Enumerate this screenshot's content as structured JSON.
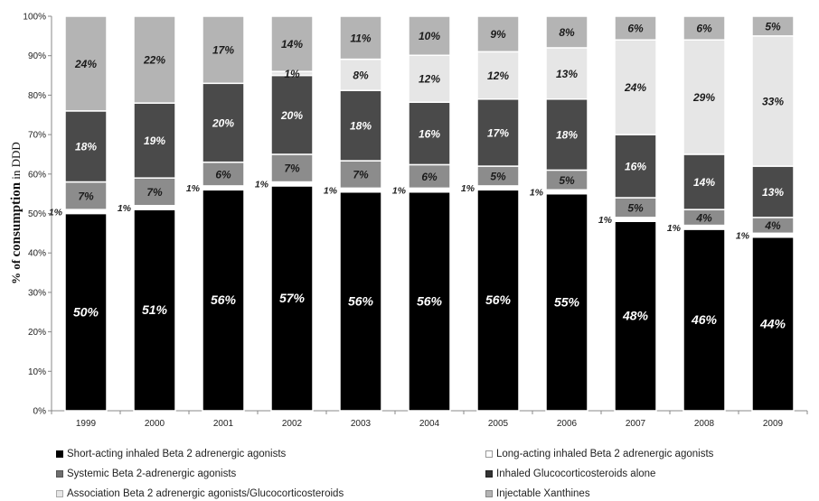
{
  "chart_data": {
    "type": "bar",
    "stacked": true,
    "percent_stacked": true,
    "ylabel": "% of consumption in DDD",
    "ylabel_parts": [
      "% of ",
      "consumption",
      " in DDD"
    ],
    "ylim": [
      0,
      100
    ],
    "yticks": [
      "0%",
      "10%",
      "20%",
      "30%",
      "40%",
      "50%",
      "60%",
      "70%",
      "80%",
      "90%",
      "100%"
    ],
    "categories": [
      "1999",
      "2000",
      "2001",
      "2002",
      "2003",
      "2004",
      "2005",
      "2006",
      "2007",
      "2008",
      "2009"
    ],
    "series": [
      {
        "name": "Short-acting inhaled  Beta 2 adrenergic agonists",
        "color": "#000000",
        "values": [
          50,
          51,
          56,
          57,
          56,
          56,
          56,
          55,
          48,
          46,
          44
        ],
        "labels": [
          "50%",
          "51%",
          "56%",
          "57%",
          "56%",
          "56%",
          "56%",
          "55%",
          "48%",
          "46%",
          "44%"
        ]
      },
      {
        "name": "Long-acting inhaled Beta 2 adrenergic agonists",
        "color": "#ffffff",
        "values": [
          1,
          1,
          1,
          1,
          1,
          1,
          1,
          1,
          1,
          1,
          1
        ],
        "labels": [
          "1%",
          "1%",
          "1%",
          "1%",
          "1%",
          "1%",
          "1%",
          "1%",
          "1%",
          "1%",
          "1%"
        ]
      },
      {
        "name": "Systemic Beta 2-adrenergic agonists",
        "color": "#8c8c8c",
        "values": [
          7,
          7,
          6,
          7,
          7,
          6,
          5,
          5,
          5,
          4,
          4
        ],
        "labels": [
          "7%",
          "7%",
          "6%",
          "7%",
          "7%",
          "6%",
          "5%",
          "5%",
          "5%",
          "4%",
          "4%"
        ]
      },
      {
        "name": "Inhaled Glucocorticosteroids alone",
        "color": "#4a4a4a",
        "values": [
          18,
          19,
          20,
          20,
          18,
          16,
          17,
          18,
          16,
          14,
          13
        ],
        "labels": [
          "18%",
          "19%",
          "20%",
          "20%",
          "18%",
          "16%",
          "17%",
          "18%",
          "16%",
          "14%",
          "13%"
        ]
      },
      {
        "name": "Association Beta 2 adrenergic agonists/Glucocorticosteroids",
        "color": "#e6e6e6",
        "values": [
          0,
          0,
          0,
          1,
          8,
          12,
          12,
          13,
          24,
          29,
          33
        ],
        "labels": [
          "",
          "",
          "",
          "1%",
          "8%",
          "12%",
          "12%",
          "13%",
          "24%",
          "29%",
          "33%"
        ]
      },
      {
        "name": "Injectable Xanthines",
        "color": "#b4b4b4",
        "values": [
          24,
          22,
          17,
          14,
          11,
          10,
          9,
          8,
          6,
          6,
          5
        ],
        "labels": [
          "24%",
          "22%",
          "17%",
          "14%",
          "11%",
          "10%",
          "9%",
          "8%",
          "6%",
          "6%",
          "5%"
        ]
      }
    ],
    "legend_position": "bottom",
    "grid": false
  }
}
